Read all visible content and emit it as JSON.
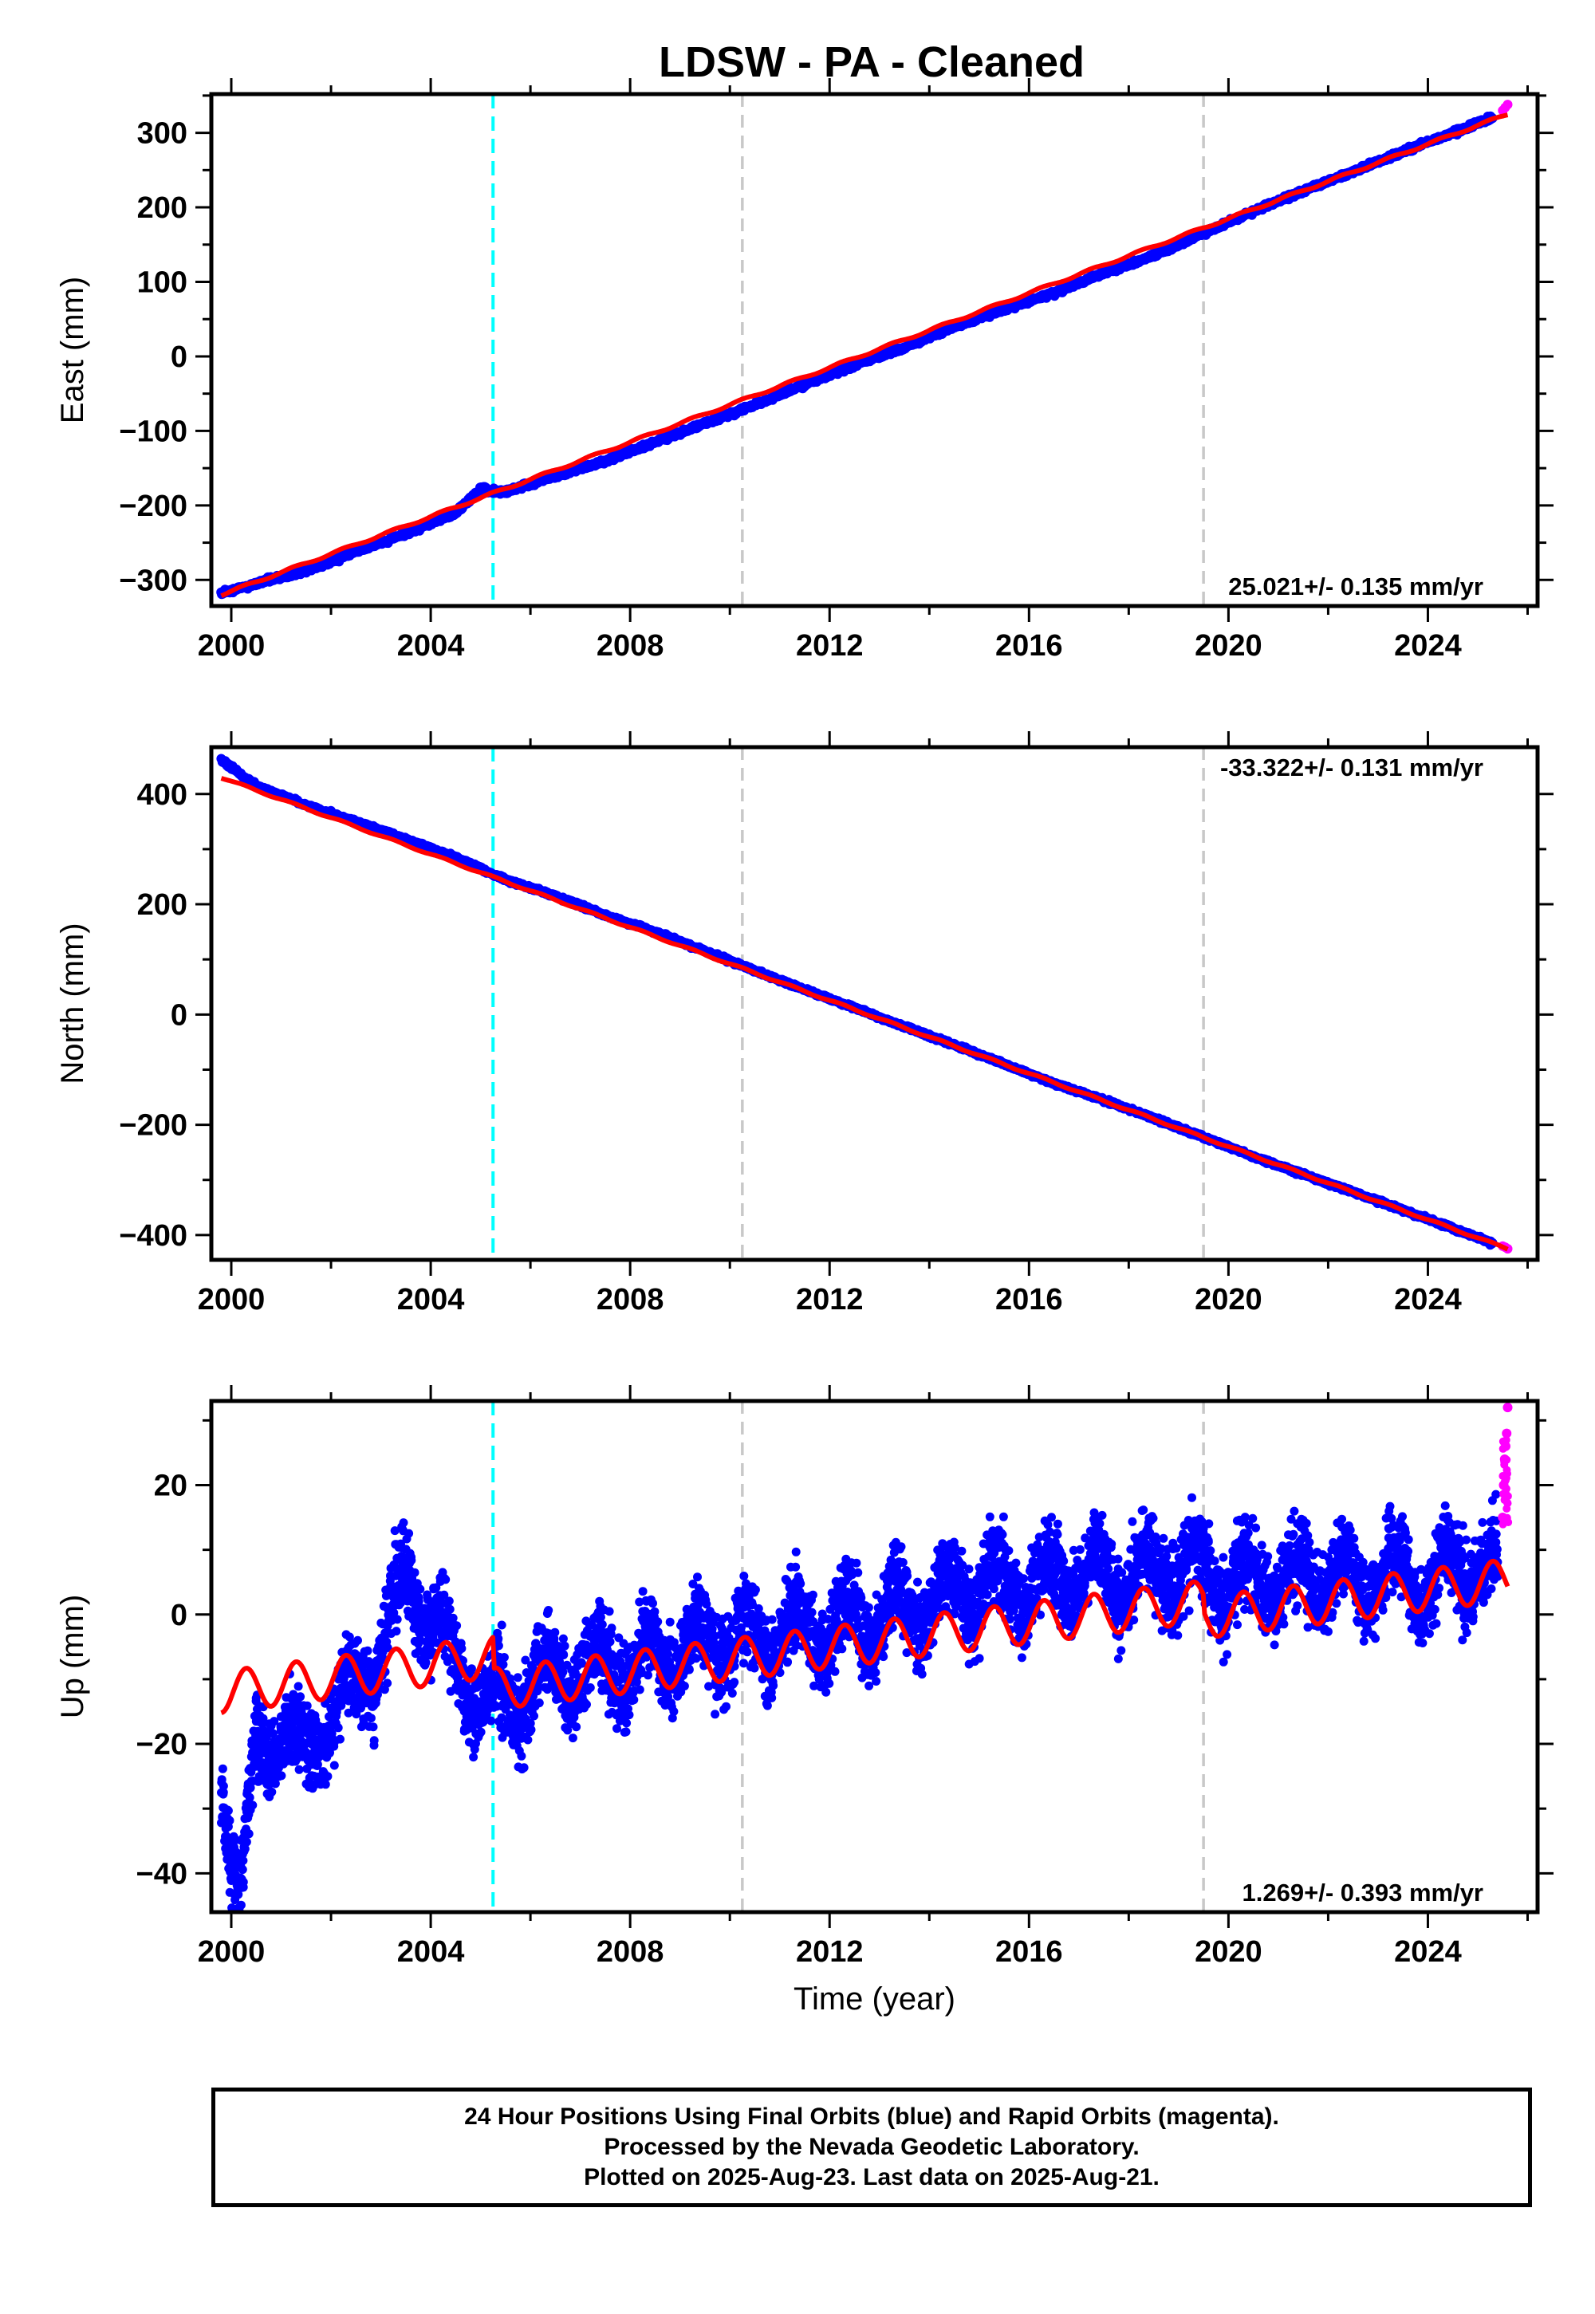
{
  "title": "LDSW  - PA - Cleaned",
  "colors": {
    "final_orbits": "#0000ff",
    "rapid_orbits": "#ff00ff",
    "model_fit": "#ff0000",
    "equipment_change": "#00ffff",
    "other_event": "#c8c8c8"
  },
  "footer": {
    "line1": "24 Hour Positions Using Final Orbits (blue) and Rapid Orbits (magenta).",
    "line2": "Processed by the Nevada Geodetic Laboratory.",
    "line3": "Plotted on 2025-Aug-23. Last data on 2025-Aug-21."
  },
  "chart_data": [
    {
      "type": "scatter",
      "ylabel": "East (mm)",
      "xlabel": "",
      "xlim": [
        1999.6,
        2026.2
      ],
      "ylim": [
        -335,
        352
      ],
      "xticks": [
        "2000",
        "2004",
        "2008",
        "2012",
        "2016",
        "2020",
        "2024"
      ],
      "yticks": [
        "−300",
        "−200",
        "−100",
        "0",
        "100",
        "200",
        "300"
      ],
      "rate_label": "25.021+/- 0.135 mm/yr",
      "rate_label_position": "bottom-right",
      "vertical_lines": [
        {
          "x": 2005.25,
          "kind": "equipment_change"
        },
        {
          "x": 2010.25,
          "kind": "other_event"
        },
        {
          "x": 2019.5,
          "kind": "other_event"
        }
      ],
      "series": [
        {
          "kind": "final_orbits",
          "x": [
            1999.8,
            2000.5,
            2001.5,
            2002.5,
            2003.5,
            2004.5,
            2005.0,
            2005.5,
            2006.5,
            2007.5,
            2008.5,
            2009.5,
            2010.5,
            2011.5,
            2012.5,
            2013.5,
            2014.5,
            2015.5,
            2016.5,
            2017.5,
            2018.5,
            2019.5,
            2020.5,
            2021.5,
            2022.5,
            2023.5,
            2024.5,
            2025.3
          ],
          "y": [
            -318,
            -305,
            -288,
            -262,
            -238,
            -210,
            -178,
            -182,
            -160,
            -140,
            -115,
            -90,
            -65,
            -38,
            -12,
            12,
            40,
            63,
            85,
            112,
            135,
            165,
            195,
            222,
            248,
            275,
            300,
            320
          ]
        },
        {
          "kind": "rapid_orbits",
          "x": [
            2025.5,
            2025.55,
            2025.6
          ],
          "y": [
            330,
            334,
            338
          ]
        },
        {
          "kind": "model_fit",
          "x": [
            1999.8,
            2025.6
          ],
          "y": [
            -320,
            325
          ]
        }
      ]
    },
    {
      "type": "scatter",
      "ylabel": "North (mm)",
      "xlabel": "",
      "xlim": [
        1999.6,
        2026.2
      ],
      "ylim": [
        -445,
        485
      ],
      "xticks": [
        "2000",
        "2004",
        "2008",
        "2012",
        "2016",
        "2020",
        "2024"
      ],
      "yticks": [
        "400",
        "200",
        "0",
        "−200",
        "−400"
      ],
      "rate_label": "-33.322+/- 0.131 mm/yr",
      "rate_label_position": "top-right",
      "vertical_lines": [
        {
          "x": 2005.25,
          "kind": "equipment_change"
        },
        {
          "x": 2010.25,
          "kind": "other_event"
        },
        {
          "x": 2019.5,
          "kind": "other_event"
        }
      ],
      "series": [
        {
          "kind": "final_orbits",
          "x": [
            1999.8,
            2000.5,
            2001.5,
            2002.5,
            2003.5,
            2004.5,
            2005.5,
            2006.5,
            2007.5,
            2008.5,
            2009.5,
            2010.5,
            2011.5,
            2012.5,
            2013.5,
            2014.5,
            2015.5,
            2016.5,
            2017.5,
            2018.5,
            2019.5,
            2020.5,
            2021.5,
            2022.5,
            2023.5,
            2024.5,
            2025.3
          ],
          "y": [
            462,
            415,
            380,
            350,
            318,
            285,
            245,
            215,
            180,
            150,
            115,
            80,
            45,
            12,
            -22,
            -55,
            -90,
            -125,
            -155,
            -188,
            -222,
            -258,
            -290,
            -322,
            -355,
            -388,
            -415
          ]
        },
        {
          "kind": "rapid_orbits",
          "x": [
            2025.5,
            2025.55,
            2025.6
          ],
          "y": [
            -420,
            -422,
            -425
          ]
        },
        {
          "kind": "model_fit",
          "x": [
            1999.8,
            2025.6
          ],
          "y": [
            430,
            -425
          ]
        }
      ]
    },
    {
      "type": "scatter",
      "ylabel": "Up (mm)",
      "xlabel": "Time (year)",
      "xlim": [
        1999.6,
        2026.2
      ],
      "ylim": [
        -46,
        33
      ],
      "xticks": [
        "2000",
        "2004",
        "2008",
        "2012",
        "2016",
        "2020",
        "2024"
      ],
      "yticks": [
        "20",
        "0",
        "−20",
        "−40"
      ],
      "rate_label": "1.269+/- 0.393 mm/yr",
      "rate_label_position": "bottom-right",
      "vertical_lines": [
        {
          "x": 2005.25,
          "kind": "equipment_change"
        },
        {
          "x": 2010.25,
          "kind": "other_event"
        },
        {
          "x": 2019.5,
          "kind": "other_event"
        }
      ],
      "series": [
        {
          "kind": "final_orbits",
          "x": [
            1999.8,
            2000.0,
            2000.2,
            2000.5,
            2001.0,
            2001.5,
            2002.0,
            2002.5,
            2003.0,
            2003.5,
            2004.0,
            2004.5,
            2005.0,
            2005.5,
            2006.0,
            2007.0,
            2008.0,
            2009.0,
            2010.0,
            2011.0,
            2012.0,
            2013.0,
            2014.0,
            2015.0,
            2016.0,
            2017.0,
            2018.0,
            2019.0,
            2020.0,
            2021.0,
            2022.0,
            2023.0,
            2024.0,
            2025.0,
            2025.4
          ],
          "y": [
            -25,
            -35,
            -44,
            -20,
            -18,
            -22,
            -15,
            -12,
            -5,
            5,
            0,
            -8,
            -12,
            -15,
            -10,
            -9,
            -8,
            -5,
            -4,
            -3,
            -2,
            0,
            2,
            4,
            5,
            6,
            6,
            7,
            5,
            5,
            6,
            6,
            5,
            8,
            5
          ]
        },
        {
          "kind": "rapid_orbits",
          "x": [
            2025.5,
            2025.52,
            2025.54,
            2025.56,
            2025.58,
            2025.6
          ],
          "y": [
            15,
            20,
            24,
            26,
            28,
            32
          ]
        },
        {
          "kind": "model_fit",
          "trend_rate_mm_per_yr": 1.269,
          "x": [
            1999.8,
            2025.6
          ],
          "y": [
            -12,
            10
          ]
        }
      ]
    }
  ]
}
